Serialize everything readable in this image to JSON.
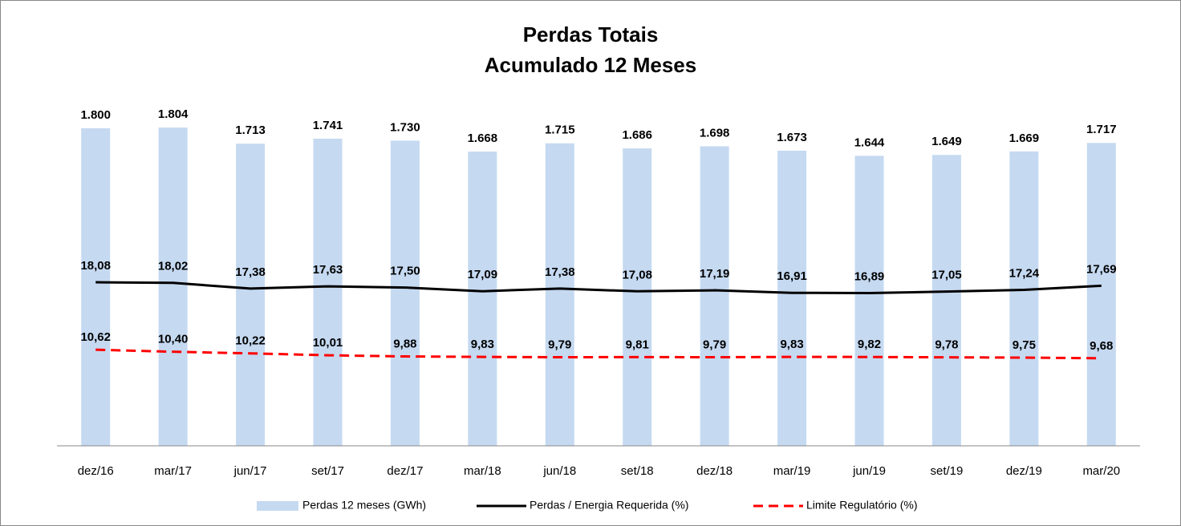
{
  "chart_data": {
    "type": "bar",
    "title": "Perdas Totais",
    "subtitle": "Acumulado 12 Meses",
    "categories": [
      "dez/16",
      "mar/17",
      "jun/17",
      "set/17",
      "dez/17",
      "mar/18",
      "jun/18",
      "set/18",
      "dez/18",
      "mar/19",
      "jun/19",
      "set/19",
      "dez/19",
      "mar/20"
    ],
    "ylim": [
      0,
      2000
    ],
    "y2lim": [
      0,
      39
    ],
    "legend": "bottom",
    "series": [
      {
        "name": "Perdas 12 meses (GWh)",
        "type": "bar",
        "color": "#c5d9f1",
        "values": [
          1800,
          1804,
          1713,
          1741,
          1730,
          1668,
          1715,
          1686,
          1698,
          1673,
          1644,
          1649,
          1669,
          1717
        ],
        "value_labels": [
          "1.800",
          "1.804",
          "1.713",
          "1.741",
          "1.730",
          "1.668",
          "1.715",
          "1.686",
          "1.698",
          "1.673",
          "1.644",
          "1.649",
          "1.669",
          "1.717"
        ]
      },
      {
        "name": "Perdas / Energia Requerida (%)",
        "type": "line",
        "axis": "y2",
        "color": "#000000",
        "values": [
          18.08,
          18.02,
          17.38,
          17.63,
          17.5,
          17.09,
          17.38,
          17.08,
          17.19,
          16.91,
          16.89,
          17.05,
          17.24,
          17.69
        ],
        "value_labels": [
          "18,08",
          "18,02",
          "17,38",
          "17,63",
          "17,50",
          "17,09",
          "17,38",
          "17,08",
          "17,19",
          "16,91",
          "16,89",
          "17,05",
          "17,24",
          "17,69"
        ]
      },
      {
        "name": "Limite Regulatório (%)",
        "type": "dashed-line",
        "axis": "y2",
        "color": "#ff0000",
        "values": [
          10.62,
          10.4,
          10.22,
          10.01,
          9.88,
          9.83,
          9.79,
          9.81,
          9.79,
          9.83,
          9.82,
          9.78,
          9.75,
          9.68
        ],
        "value_labels": [
          "10,62",
          "10,40",
          "10,22",
          "10,01",
          "9,88",
          "9,83",
          "9,79",
          "9,81",
          "9,79",
          "9,83",
          "9,82",
          "9,78",
          "9,75",
          "9,68"
        ]
      }
    ]
  }
}
